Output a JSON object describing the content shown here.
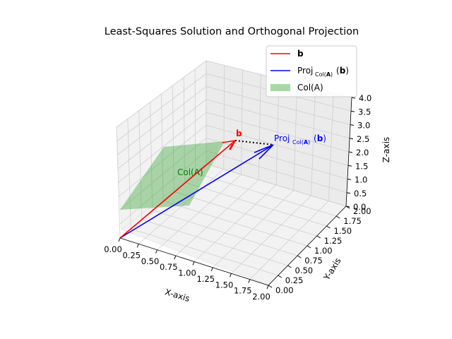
{
  "chart_data": {
    "type": "3d-vector-plot",
    "title": "Least-Squares Solution and Orthogonal Projection",
    "xlabel": "X-axis",
    "ylabel": "Y-axis",
    "zlabel": "Z-axis",
    "xlim": [
      0,
      2
    ],
    "ylim": [
      0,
      2
    ],
    "zlim": [
      0,
      4
    ],
    "x_ticks": [
      "0.00",
      "0.25",
      "0.50",
      "0.75",
      "1.00",
      "1.25",
      "1.50",
      "1.75",
      "2.00"
    ],
    "y_ticks": [
      "0.00",
      "0.25",
      "0.50",
      "0.75",
      "1.00",
      "1.25",
      "1.50",
      "1.75",
      "2.00"
    ],
    "z_ticks": [
      "0.0",
      "0.5",
      "1.0",
      "1.5",
      "2.0",
      "2.5",
      "3.0",
      "3.5",
      "4.0"
    ],
    "grid": true,
    "legend_position": "top-right",
    "vectors": [
      {
        "label": "b",
        "color": "#ff0000",
        "from": [
          0,
          0,
          0
        ],
        "to": [
          1,
          1,
          2
        ],
        "annotation": "b"
      },
      {
        "label": "Proj_{Col(A)}(b)",
        "color": "#0000ff",
        "from": [
          0,
          0,
          0
        ],
        "to": [
          1.2,
          1.5,
          2.2
        ],
        "annotation": "Proj_{Col(A)}(b)"
      }
    ],
    "residual": {
      "color": "#000000",
      "style": "dotted",
      "from": [
        1,
        1,
        2
      ],
      "to": [
        1.2,
        1.5,
        2.2
      ]
    },
    "plane": {
      "label": "Col(A)",
      "color": "#2ca02c",
      "alpha": 0.4,
      "annotation": "Col(A)"
    },
    "legend": [
      {
        "label": "b",
        "type": "line",
        "color": "#ff0000"
      },
      {
        "label": "Proj_{Col(A)}(b)",
        "type": "line",
        "color": "#0000ff"
      },
      {
        "label": "Col(A)",
        "type": "patch",
        "color": "#2ca02c"
      }
    ]
  }
}
